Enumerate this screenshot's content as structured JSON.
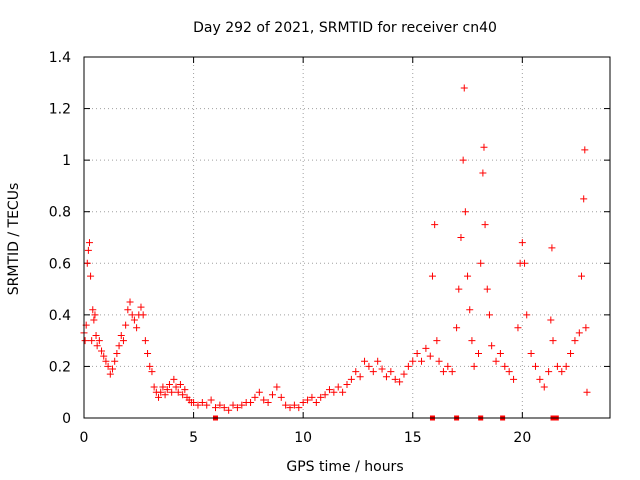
{
  "chart_data": {
    "type": "scatter",
    "title": "Day 292 of 2021, SRMTID for receiver cn40",
    "xlabel": "GPS time / hours",
    "ylabel": "SRMTID / TECUs",
    "xlim": [
      0,
      24
    ],
    "ylim": [
      0,
      1.4
    ],
    "xticks": [
      0,
      5,
      10,
      15,
      20
    ],
    "xtick_labels": [
      "0",
      "5",
      "10",
      "15",
      "20"
    ],
    "yticks": [
      0,
      0.2,
      0.4,
      0.6,
      0.8,
      1.0,
      1.2,
      1.4
    ],
    "ytick_labels": [
      "0",
      "0.2",
      "0.4",
      "0.6",
      "0.8",
      "1",
      "1.2",
      "1.4"
    ],
    "grid": true,
    "legend": "none",
    "series": [
      {
        "name": "SRMTID",
        "marker": "plus",
        "color": "#ff0000",
        "points": [
          [
            0.0,
            0.33
          ],
          [
            0.05,
            0.3
          ],
          [
            0.1,
            0.36
          ],
          [
            0.15,
            0.6
          ],
          [
            0.2,
            0.65
          ],
          [
            0.25,
            0.68
          ],
          [
            0.3,
            0.55
          ],
          [
            0.35,
            0.3
          ],
          [
            0.4,
            0.42
          ],
          [
            0.45,
            0.38
          ],
          [
            0.5,
            0.4
          ],
          [
            0.55,
            0.32
          ],
          [
            0.6,
            0.28
          ],
          [
            0.7,
            0.3
          ],
          [
            0.8,
            0.26
          ],
          [
            0.9,
            0.24
          ],
          [
            1.0,
            0.22
          ],
          [
            1.1,
            0.2
          ],
          [
            1.2,
            0.17
          ],
          [
            1.3,
            0.19
          ],
          [
            1.4,
            0.22
          ],
          [
            1.5,
            0.25
          ],
          [
            1.6,
            0.28
          ],
          [
            1.7,
            0.32
          ],
          [
            1.8,
            0.3
          ],
          [
            1.9,
            0.36
          ],
          [
            2.0,
            0.42
          ],
          [
            2.1,
            0.45
          ],
          [
            2.2,
            0.4
          ],
          [
            2.3,
            0.38
          ],
          [
            2.4,
            0.35
          ],
          [
            2.5,
            0.4
          ],
          [
            2.6,
            0.43
          ],
          [
            2.7,
            0.4
          ],
          [
            2.8,
            0.3
          ],
          [
            2.9,
            0.25
          ],
          [
            3.0,
            0.2
          ],
          [
            3.1,
            0.18
          ],
          [
            3.2,
            0.12
          ],
          [
            3.3,
            0.1
          ],
          [
            3.4,
            0.08
          ],
          [
            3.5,
            0.1
          ],
          [
            3.6,
            0.12
          ],
          [
            3.7,
            0.09
          ],
          [
            3.8,
            0.11
          ],
          [
            3.9,
            0.13
          ],
          [
            4.0,
            0.1
          ],
          [
            4.1,
            0.15
          ],
          [
            4.2,
            0.12
          ],
          [
            4.3,
            0.1
          ],
          [
            4.4,
            0.13
          ],
          [
            4.5,
            0.09
          ],
          [
            4.6,
            0.11
          ],
          [
            4.7,
            0.08
          ],
          [
            4.8,
            0.07
          ],
          [
            4.9,
            0.06
          ],
          [
            5.0,
            0.06
          ],
          [
            5.2,
            0.05
          ],
          [
            5.4,
            0.06
          ],
          [
            5.6,
            0.05
          ],
          [
            5.8,
            0.07
          ],
          [
            6.0,
            0.04
          ],
          [
            6.2,
            0.05
          ],
          [
            6.4,
            0.04
          ],
          [
            6.6,
            0.03
          ],
          [
            6.8,
            0.05
          ],
          [
            7.0,
            0.04
          ],
          [
            7.2,
            0.05
          ],
          [
            7.4,
            0.06
          ],
          [
            7.6,
            0.06
          ],
          [
            7.8,
            0.08
          ],
          [
            8.0,
            0.1
          ],
          [
            8.2,
            0.07
          ],
          [
            8.4,
            0.06
          ],
          [
            8.6,
            0.09
          ],
          [
            8.8,
            0.12
          ],
          [
            9.0,
            0.08
          ],
          [
            9.2,
            0.05
          ],
          [
            9.4,
            0.04
          ],
          [
            9.6,
            0.05
          ],
          [
            9.8,
            0.04
          ],
          [
            10.0,
            0.06
          ],
          [
            10.2,
            0.07
          ],
          [
            10.4,
            0.08
          ],
          [
            10.6,
            0.06
          ],
          [
            10.8,
            0.08
          ],
          [
            11.0,
            0.09
          ],
          [
            11.2,
            0.11
          ],
          [
            11.4,
            0.1
          ],
          [
            11.6,
            0.12
          ],
          [
            11.8,
            0.1
          ],
          [
            12.0,
            0.13
          ],
          [
            12.2,
            0.15
          ],
          [
            12.4,
            0.18
          ],
          [
            12.6,
            0.16
          ],
          [
            12.8,
            0.22
          ],
          [
            13.0,
            0.2
          ],
          [
            13.2,
            0.18
          ],
          [
            13.4,
            0.22
          ],
          [
            13.6,
            0.19
          ],
          [
            13.8,
            0.16
          ],
          [
            14.0,
            0.18
          ],
          [
            14.2,
            0.15
          ],
          [
            14.4,
            0.14
          ],
          [
            14.6,
            0.17
          ],
          [
            14.8,
            0.2
          ],
          [
            15.0,
            0.22
          ],
          [
            15.2,
            0.25
          ],
          [
            15.4,
            0.22
          ],
          [
            15.6,
            0.27
          ],
          [
            15.8,
            0.24
          ],
          [
            15.9,
            0.55
          ],
          [
            16.0,
            0.75
          ],
          [
            16.1,
            0.3
          ],
          [
            16.2,
            0.22
          ],
          [
            16.4,
            0.18
          ],
          [
            16.6,
            0.2
          ],
          [
            16.8,
            0.18
          ],
          [
            17.0,
            0.35
          ],
          [
            17.1,
            0.5
          ],
          [
            17.2,
            0.7
          ],
          [
            17.3,
            1.0
          ],
          [
            17.35,
            1.28
          ],
          [
            17.4,
            0.8
          ],
          [
            17.5,
            0.55
          ],
          [
            17.6,
            0.42
          ],
          [
            17.7,
            0.3
          ],
          [
            17.8,
            0.2
          ],
          [
            18.0,
            0.25
          ],
          [
            18.1,
            0.6
          ],
          [
            18.2,
            0.95
          ],
          [
            18.25,
            1.05
          ],
          [
            18.3,
            0.75
          ],
          [
            18.4,
            0.5
          ],
          [
            18.5,
            0.4
          ],
          [
            18.6,
            0.28
          ],
          [
            18.8,
            0.22
          ],
          [
            19.0,
            0.25
          ],
          [
            19.2,
            0.2
          ],
          [
            19.4,
            0.18
          ],
          [
            19.6,
            0.15
          ],
          [
            19.8,
            0.35
          ],
          [
            19.9,
            0.6
          ],
          [
            20.0,
            0.68
          ],
          [
            20.1,
            0.6
          ],
          [
            20.2,
            0.4
          ],
          [
            20.4,
            0.25
          ],
          [
            20.6,
            0.2
          ],
          [
            20.8,
            0.15
          ],
          [
            21.0,
            0.12
          ],
          [
            21.2,
            0.18
          ],
          [
            21.3,
            0.38
          ],
          [
            21.35,
            0.66
          ],
          [
            21.4,
            0.3
          ],
          [
            21.6,
            0.2
          ],
          [
            21.8,
            0.18
          ],
          [
            22.0,
            0.2
          ],
          [
            22.2,
            0.25
          ],
          [
            22.4,
            0.3
          ],
          [
            22.6,
            0.33
          ],
          [
            22.7,
            0.55
          ],
          [
            22.8,
            0.85
          ],
          [
            22.85,
            1.04
          ],
          [
            22.9,
            0.35
          ],
          [
            22.95,
            0.1
          ],
          [
            6.0,
            0.0
          ],
          [
            15.9,
            0.0
          ],
          [
            17.0,
            0.0
          ],
          [
            18.1,
            0.0
          ],
          [
            19.1,
            0.0
          ],
          [
            21.4,
            0.0
          ],
          [
            21.55,
            0.0
          ]
        ]
      }
    ]
  }
}
